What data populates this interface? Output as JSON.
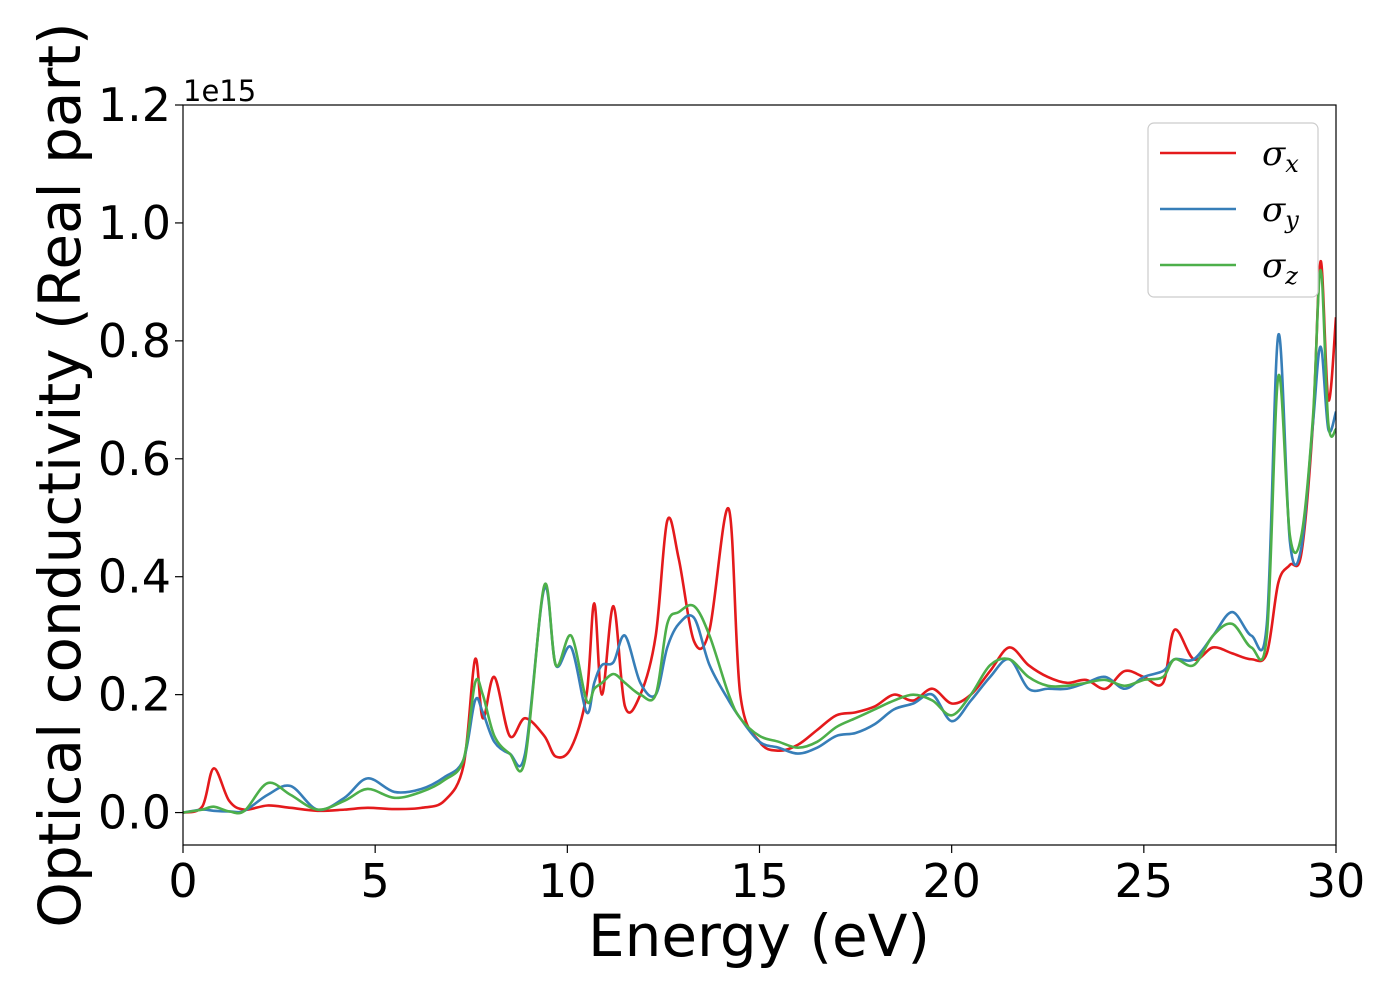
{
  "chart_data": {
    "type": "line",
    "xlabel": "Energy (eV)",
    "ylabel": "Optical conductivity (Real part)",
    "y_offset_label": "1e15",
    "y_scale": 1000000000000000.0,
    "xlim": [
      0,
      30
    ],
    "ylim": [
      -0.055,
      1.2
    ],
    "x_ticks": [
      0,
      5,
      10,
      15,
      20,
      25,
      30
    ],
    "y_ticks": [
      0.0,
      0.2,
      0.4,
      0.6,
      0.8,
      1.0,
      1.2
    ],
    "x_tick_labels": [
      "0",
      "5",
      "10",
      "15",
      "20",
      "25",
      "30"
    ],
    "y_tick_labels": [
      "0.0",
      "0.2",
      "0.4",
      "0.6",
      "0.8",
      "1.0",
      "1.2"
    ],
    "grid": false,
    "legend_position": "top-right",
    "x": [
      0,
      0.5,
      0.8,
      1.2,
      1.6,
      2.2,
      2.8,
      3.5,
      4.2,
      4.8,
      5.5,
      6.2,
      6.8,
      7.3,
      7.6,
      7.8,
      8.1,
      8.5,
      8.9,
      9.4,
      9.7,
      10.1,
      10.5,
      10.7,
      10.9,
      11.2,
      11.5,
      11.9,
      12.3,
      12.6,
      12.9,
      13.3,
      13.7,
      14.2,
      14.5,
      15.0,
      15.5,
      16.0,
      16.5,
      17.0,
      17.5,
      18.0,
      18.5,
      19.0,
      19.5,
      20.0,
      20.5,
      21.0,
      21.5,
      22.0,
      22.5,
      23.0,
      23.5,
      24.0,
      24.5,
      25.0,
      25.5,
      25.8,
      26.3,
      26.8,
      27.3,
      27.8,
      28.2,
      28.5,
      28.8,
      29.1,
      29.4,
      29.6,
      29.8,
      30.0
    ],
    "series": [
      {
        "name": "x",
        "color": "#e41a1c",
        "values": [
          0.0,
          0.01,
          0.075,
          0.02,
          0.005,
          0.012,
          0.008,
          0.003,
          0.005,
          0.008,
          0.006,
          0.008,
          0.02,
          0.08,
          0.26,
          0.16,
          0.23,
          0.13,
          0.16,
          0.13,
          0.095,
          0.11,
          0.2,
          0.355,
          0.2,
          0.35,
          0.18,
          0.2,
          0.3,
          0.495,
          0.43,
          0.29,
          0.31,
          0.515,
          0.2,
          0.12,
          0.105,
          0.115,
          0.14,
          0.165,
          0.17,
          0.18,
          0.2,
          0.19,
          0.21,
          0.185,
          0.2,
          0.24,
          0.28,
          0.25,
          0.23,
          0.22,
          0.225,
          0.21,
          0.24,
          0.23,
          0.22,
          0.31,
          0.26,
          0.28,
          0.27,
          0.26,
          0.27,
          0.39,
          0.42,
          0.44,
          0.66,
          0.935,
          0.7,
          0.84
        ]
      },
      {
        "name": "y",
        "color": "#377eb8",
        "values": [
          0.0,
          0.005,
          0.003,
          0.002,
          0.003,
          0.03,
          0.045,
          0.005,
          0.025,
          0.058,
          0.035,
          0.04,
          0.06,
          0.09,
          0.19,
          0.17,
          0.12,
          0.1,
          0.1,
          0.38,
          0.25,
          0.28,
          0.17,
          0.22,
          0.25,
          0.255,
          0.3,
          0.22,
          0.2,
          0.28,
          0.32,
          0.33,
          0.25,
          0.19,
          0.16,
          0.12,
          0.11,
          0.1,
          0.11,
          0.13,
          0.135,
          0.15,
          0.175,
          0.185,
          0.2,
          0.155,
          0.19,
          0.23,
          0.26,
          0.21,
          0.21,
          0.21,
          0.22,
          0.23,
          0.21,
          0.23,
          0.24,
          0.26,
          0.26,
          0.3,
          0.34,
          0.3,
          0.32,
          0.81,
          0.46,
          0.45,
          0.66,
          0.79,
          0.65,
          0.68
        ]
      },
      {
        "name": "z",
        "color": "#4daf4a",
        "values": [
          0.0,
          0.005,
          0.01,
          0.002,
          0.003,
          0.05,
          0.03,
          0.005,
          0.02,
          0.04,
          0.025,
          0.035,
          0.055,
          0.09,
          0.22,
          0.2,
          0.13,
          0.1,
          0.09,
          0.385,
          0.25,
          0.3,
          0.19,
          0.21,
          0.22,
          0.235,
          0.22,
          0.2,
          0.2,
          0.32,
          0.34,
          0.35,
          0.3,
          0.2,
          0.16,
          0.13,
          0.12,
          0.11,
          0.12,
          0.145,
          0.16,
          0.175,
          0.19,
          0.2,
          0.19,
          0.165,
          0.2,
          0.25,
          0.26,
          0.23,
          0.215,
          0.215,
          0.22,
          0.225,
          0.215,
          0.225,
          0.23,
          0.26,
          0.25,
          0.3,
          0.32,
          0.28,
          0.3,
          0.74,
          0.47,
          0.47,
          0.67,
          0.92,
          0.66,
          0.65
        ]
      }
    ]
  }
}
